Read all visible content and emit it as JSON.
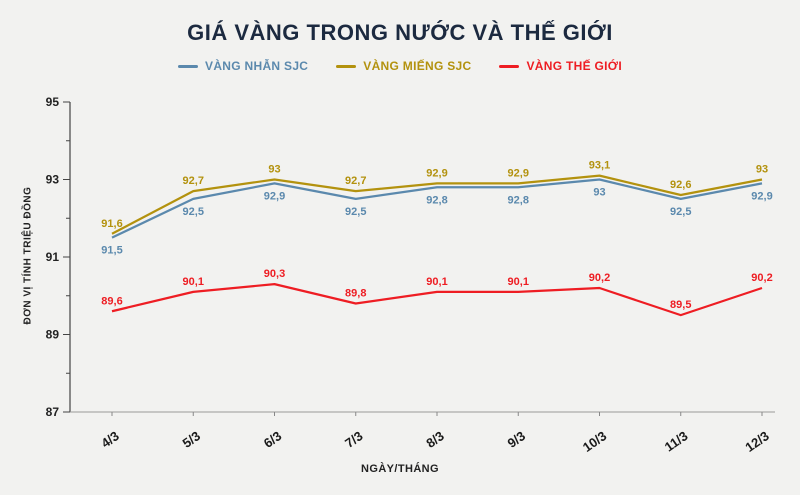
{
  "title": "GIÁ VÀNG TRONG NƯỚC VÀ THẾ GIỚI",
  "legend": [
    {
      "label": "VÀNG NHẪN SJC",
      "color": "#5b89ad"
    },
    {
      "label": "VÀNG MIẾNG SJC",
      "color": "#b3920e"
    },
    {
      "label": "VÀNG THẾ GIỚI",
      "color": "#ee1d23"
    }
  ],
  "chart_data": {
    "type": "line",
    "title": "GIÁ VÀNG TRONG NƯỚC VÀ THẾ GIỚI",
    "categories": [
      "4/3",
      "5/3",
      "6/3",
      "7/3",
      "8/3",
      "9/3",
      "10/3",
      "11/3",
      "12/3"
    ],
    "series": [
      {
        "name": "VÀNG NHẪN SJC",
        "color": "#5b89ad",
        "label_position": "below",
        "values": [
          91.5,
          92.5,
          92.9,
          92.5,
          92.8,
          92.8,
          93,
          92.5,
          92.9
        ],
        "labels": [
          "91,5",
          "92,5",
          "92,9",
          "92,5",
          "92,8",
          "92,8",
          "93",
          "92,5",
          "92,9"
        ]
      },
      {
        "name": "VÀNG MIẾNG SJC",
        "color": "#b3920e",
        "label_position": "above",
        "values": [
          91.6,
          92.7,
          93,
          92.7,
          92.9,
          92.9,
          93.1,
          92.6,
          93
        ],
        "labels": [
          "91,6",
          "92,7",
          "93",
          "92,7",
          "92,9",
          "92,9",
          "93,1",
          "92,6",
          "93"
        ]
      },
      {
        "name": "VÀNG THẾ GIỚI",
        "color": "#ee1d23",
        "label_position": "above",
        "values": [
          89.6,
          90.1,
          90.3,
          89.8,
          90.1,
          90.1,
          90.2,
          89.5,
          90.2
        ],
        "labels": [
          "89,6",
          "90,1",
          "90,3",
          "89,8",
          "90,1",
          "90,1",
          "90,2",
          "89,5",
          "90,2"
        ]
      }
    ],
    "xlabel": "NGÀY/THÁNG",
    "ylabel": "ĐƠN VỊ TÍNH TRIỆU ĐỒNG",
    "ylim": [
      87,
      95
    ],
    "yticks": [
      87,
      89,
      91,
      93,
      95
    ],
    "grid": false,
    "legend_position": "top"
  }
}
